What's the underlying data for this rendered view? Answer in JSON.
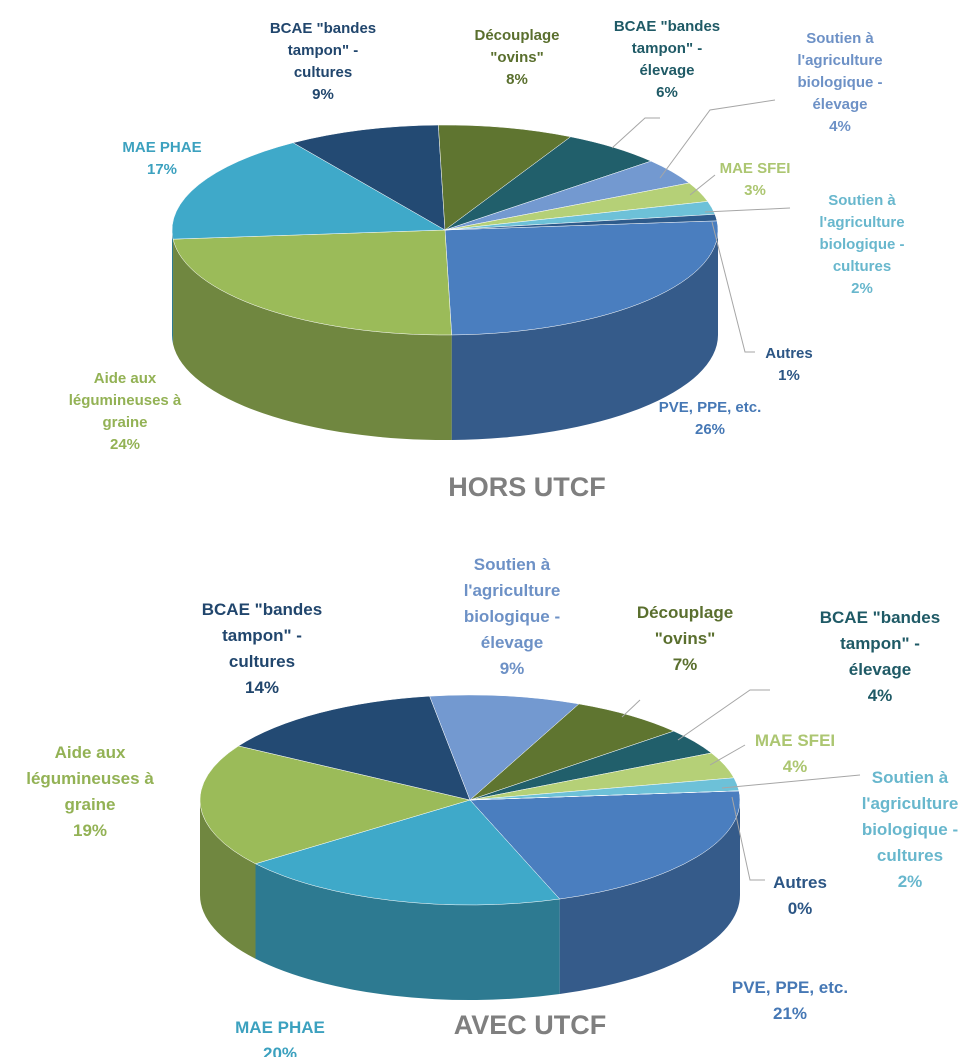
{
  "chart_data": [
    {
      "type": "pie",
      "title": "HORS UTCF",
      "categories": [
        "PVE, PPE, etc.",
        "Aide aux légumineuses à graine",
        "MAE PHAE",
        "BCAE \"bandes tampon\" - cultures",
        "Découplage \"ovins\"",
        "BCAE \"bandes tampon\" - élevage",
        "Soutien à l'agriculture biologique - élevage",
        "MAE SFEI",
        "Soutien à l'agriculture biologique - cultures",
        "Autres"
      ],
      "values": [
        26,
        24,
        17,
        9,
        8,
        6,
        4,
        3,
        2,
        1
      ],
      "value_labels": [
        "26%",
        "24%",
        "17%",
        "9%",
        "8%",
        "6%",
        "4%",
        "3%",
        "2%",
        "1%"
      ],
      "colors": [
        "#4a7ebf",
        "#9bbb59",
        "#3fa9c9",
        "#234a73",
        "#5f7530",
        "#215f6b",
        "#7399d0",
        "#b5d077",
        "#6dc1d8",
        "#2e5b8c"
      ]
    },
    {
      "type": "pie",
      "title": "AVEC UTCF",
      "categories": [
        "PVE, PPE, etc.",
        "MAE PHAE",
        "Aide aux légumineuses à graine",
        "BCAE \"bandes tampon\" - cultures",
        "Soutien à l'agriculture biologique - élevage",
        "Découplage \"ovins\"",
        "BCAE \"bandes tampon\" - élevage",
        "MAE SFEI",
        "Soutien à l'agriculture biologique - cultures",
        "Autres"
      ],
      "values": [
        21,
        20,
        19,
        14,
        9,
        7,
        4,
        4,
        2,
        0
      ],
      "value_labels": [
        "21%",
        "20%",
        "19%",
        "14%",
        "9%",
        "7%",
        "4%",
        "4%",
        "2%",
        "0%"
      ],
      "colors": [
        "#4a7ebf",
        "#3fa9c9",
        "#9bbb59",
        "#234a73",
        "#7399d0",
        "#5f7530",
        "#215f6b",
        "#b5d077",
        "#6dc1d8",
        "#2e5b8c"
      ]
    }
  ]
}
